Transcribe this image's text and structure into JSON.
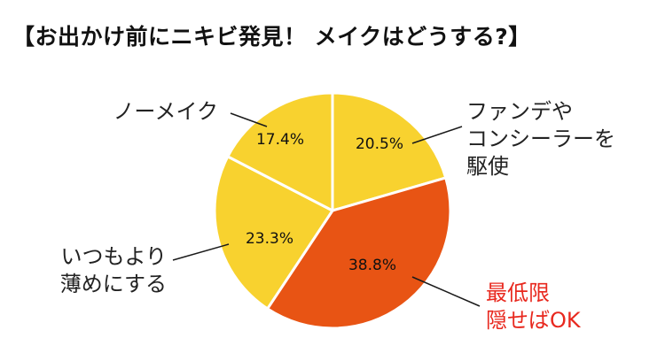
{
  "chart_data": {
    "type": "pie",
    "title": "【お出かけ前にニキビ発見！ メイクはどうする?】",
    "slices": [
      {
        "lines": [
          "ファンデや",
          "コンシーラーを",
          "駆使"
        ],
        "value": 20.5,
        "label": "20.5%",
        "color": "#f8d22f",
        "text_color": "#222222"
      },
      {
        "lines": [
          "最低限",
          "隠せばOK"
        ],
        "value": 38.8,
        "label": "38.8%",
        "color": "#e85414",
        "text_color": "#e8281e"
      },
      {
        "lines": [
          "いつもより",
          "薄めにする"
        ],
        "value": 23.3,
        "label": "23.3%",
        "color": "#f8d22f",
        "text_color": "#222222"
      },
      {
        "lines": [
          "ノーメイク"
        ],
        "value": 17.4,
        "label": "17.4%",
        "color": "#f8d22f",
        "text_color": "#222222"
      }
    ],
    "start_angle": 0,
    "direction": "clockwise"
  }
}
